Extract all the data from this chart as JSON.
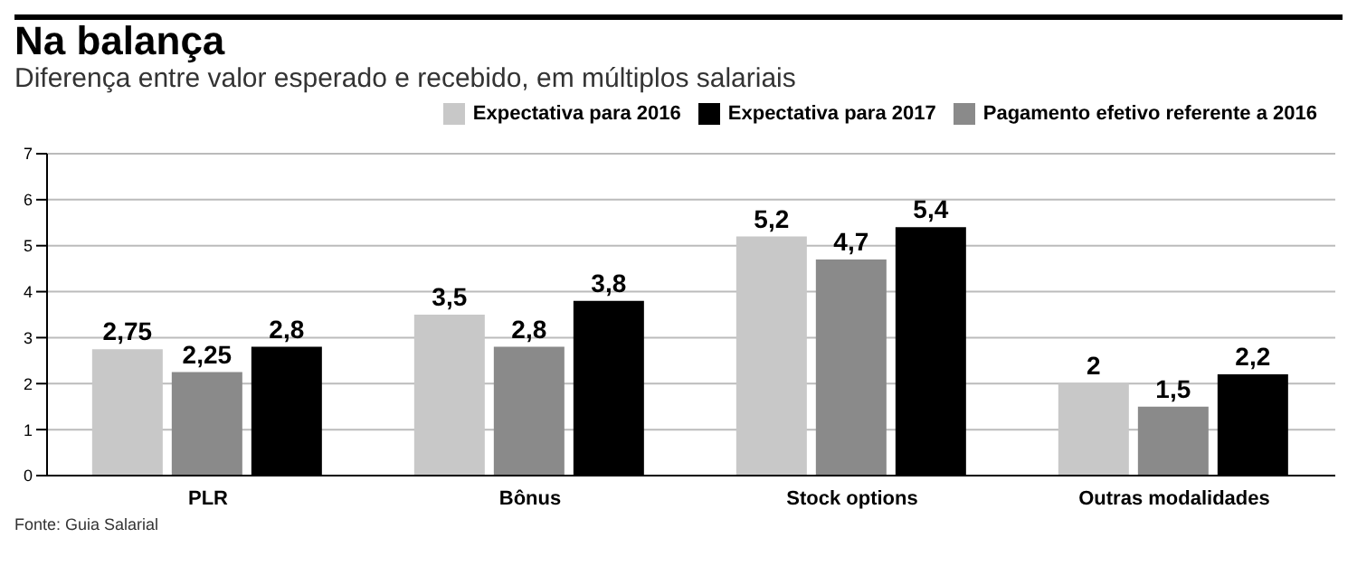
{
  "chart_data": {
    "type": "bar",
    "title": "Na balança",
    "subtitle": "Diferença entre valor esperado e recebido, em múltiplos salariais",
    "categories": [
      "PLR",
      "Bônus",
      "Stock options",
      "Outras modalidades"
    ],
    "series": [
      {
        "name": "Expectativa para 2016",
        "color": "#c8c8c8",
        "values": [
          2.75,
          3.5,
          5.2,
          2
        ],
        "value_labels": [
          "2,75",
          "3,5",
          "5,2",
          "2"
        ]
      },
      {
        "name": "Pagamento efetivo referente a 2016",
        "color": "#8a8a8a",
        "values": [
          2.25,
          2.8,
          4.7,
          1.5
        ],
        "value_labels": [
          "2,25",
          "2,8",
          "4,7",
          "1,5"
        ]
      },
      {
        "name": "Expectativa para 2017",
        "color": "#000000",
        "values": [
          2.8,
          3.8,
          5.4,
          2.2
        ],
        "value_labels": [
          "2,8",
          "3,8",
          "5,4",
          "2,2"
        ]
      }
    ],
    "ylim": [
      0,
      7
    ],
    "yticks": [
      0,
      1,
      2,
      3,
      4,
      5,
      6,
      7
    ],
    "grid": "y",
    "legend": "top right",
    "annotations": [
      "Fonte: Guia Salarial"
    ]
  }
}
